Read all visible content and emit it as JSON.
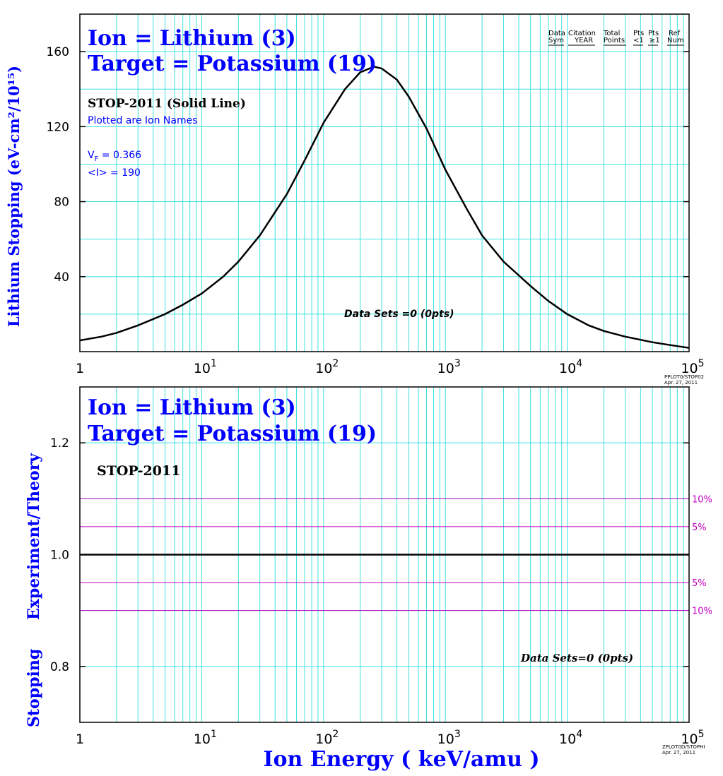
{
  "colors": {
    "grid": "#40e0e0",
    "curve": "#000000",
    "label_blue": "#0000ff",
    "band": "#c000c0",
    "text_black": "#000000"
  },
  "y_axis_left_top": "Lithium Stopping (eV-cm²/10¹⁵)",
  "y_axis_left_bottom": [
    "Stopping",
    "Experiment/Theory"
  ],
  "x_axis_label": "Ion  Energy  ( keV/amu )",
  "chart_data": [
    {
      "type": "line",
      "title_lines": [
        "Ion = Lithium (3)",
        "Target = Potassium (19)"
      ],
      "subtitle": "STOP-2011 (Solid Line)",
      "note": "Plotted are Ion Names",
      "vf_label": "V",
      "vf_sub": "F",
      "vf_value": "  = 0.366",
      "mean_i": "<I> = 190",
      "data_sets": "Data Sets =0 (0pts)",
      "legend_header": {
        "col1": [
          "Data",
          "Sym"
        ],
        "col2": [
          "Citation",
          "YEAR"
        ],
        "col3": [
          "Total",
          "Points"
        ],
        "col4": [
          "Pts",
          "<1"
        ],
        "col5": [
          "Pts",
          "≥1"
        ],
        "col6": [
          "Ref",
          "Num"
        ]
      },
      "xscale": "log",
      "xlim": [
        1,
        100000
      ],
      "ylim": [
        0,
        180
      ],
      "yticks": [
        40,
        80,
        120,
        160
      ],
      "xtick_labels": [
        "1",
        "10",
        "10",
        "10",
        "10",
        "10"
      ],
      "xtick_exponents": [
        "",
        "1",
        "2",
        "3",
        "4",
        "5"
      ],
      "stamp": [
        "PPLOT0/STOP02",
        "Apr. 27, 2011"
      ],
      "series": [
        {
          "x": [
            1,
            1.5,
            2,
            3,
            5,
            7,
            10,
            15,
            20,
            30,
            50,
            70,
            100,
            150,
            200,
            260,
            300,
            400,
            500,
            700,
            1000,
            1500,
            2000,
            3000,
            5000,
            7000,
            10000,
            15000,
            20000,
            30000,
            50000,
            70000,
            100000
          ],
          "y": [
            6,
            8,
            10,
            14,
            20,
            25,
            31,
            40,
            48,
            62,
            84,
            102,
            122,
            140,
            149,
            152,
            151,
            145,
            136,
            119,
            97,
            76,
            62,
            48,
            35,
            27,
            20,
            14,
            11,
            8,
            5,
            3.5,
            2
          ]
        }
      ]
    },
    {
      "type": "line",
      "title_lines": [
        "Ion = Lithium (3)",
        "Target = Potassium (19)"
      ],
      "subtitle": "STOP-2011",
      "data_sets": "Data Sets=0 (0pts)",
      "xscale": "log",
      "xlim": [
        1,
        100000
      ],
      "ylim": [
        0.7,
        1.3
      ],
      "yticks": [
        0.8,
        1.0,
        1.2
      ],
      "ytick_labels": [
        "0.8",
        "1.0",
        "1.2"
      ],
      "xtick_labels": [
        "1",
        "10",
        "10",
        "10",
        "10",
        "10"
      ],
      "xtick_exponents": [
        "",
        "1",
        "2",
        "3",
        "4",
        "5"
      ],
      "stamp": [
        "ZPLOT0D/STOPHI",
        "Apr. 27, 2011"
      ],
      "reference_line": 1.0,
      "bands": [
        {
          "value": 1.1,
          "label": "10%"
        },
        {
          "value": 1.05,
          "label": "5%"
        },
        {
          "value": 0.95,
          "label": "5%"
        },
        {
          "value": 0.9,
          "label": "10%"
        }
      ]
    }
  ]
}
